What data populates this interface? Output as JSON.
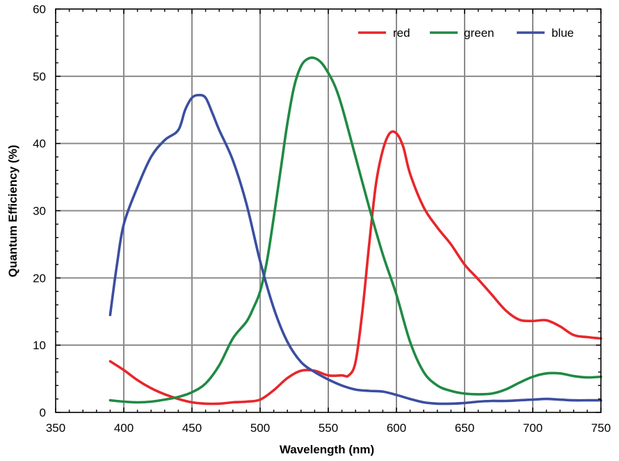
{
  "chart_data": {
    "type": "line",
    "xlabel": "Wavelength (nm)",
    "ylabel": "Quantum Efficiency (%)",
    "xlim": [
      350,
      750
    ],
    "ylim": [
      0,
      60
    ],
    "xticks": [
      350,
      400,
      450,
      500,
      550,
      600,
      650,
      700,
      750
    ],
    "yticks": [
      0,
      10,
      20,
      30,
      40,
      50,
      60
    ],
    "grid": true,
    "legend_position": "top-right",
    "series": [
      {
        "name": "red",
        "color": "#e8262b",
        "points": [
          [
            390,
            7.6
          ],
          [
            400,
            6.3
          ],
          [
            410,
            4.8
          ],
          [
            420,
            3.6
          ],
          [
            430,
            2.7
          ],
          [
            440,
            2.0
          ],
          [
            450,
            1.5
          ],
          [
            460,
            1.3
          ],
          [
            470,
            1.3
          ],
          [
            480,
            1.5
          ],
          [
            490,
            1.6
          ],
          [
            500,
            1.9
          ],
          [
            510,
            3.3
          ],
          [
            520,
            5.1
          ],
          [
            530,
            6.2
          ],
          [
            540,
            6.2
          ],
          [
            550,
            5.5
          ],
          [
            560,
            5.5
          ],
          [
            565,
            5.5
          ],
          [
            570,
            7.5
          ],
          [
            575,
            15.0
          ],
          [
            580,
            25.0
          ],
          [
            585,
            34.0
          ],
          [
            590,
            39.0
          ],
          [
            595,
            41.5
          ],
          [
            600,
            41.5
          ],
          [
            605,
            39.5
          ],
          [
            610,
            35.5
          ],
          [
            620,
            30.5
          ],
          [
            630,
            27.5
          ],
          [
            640,
            25.0
          ],
          [
            650,
            22.0
          ],
          [
            660,
            19.8
          ],
          [
            670,
            17.5
          ],
          [
            680,
            15.2
          ],
          [
            690,
            13.8
          ],
          [
            700,
            13.6
          ],
          [
            710,
            13.7
          ],
          [
            720,
            12.8
          ],
          [
            730,
            11.5
          ],
          [
            740,
            11.2
          ],
          [
            750,
            11.0
          ]
        ]
      },
      {
        "name": "green",
        "color": "#1f8a44",
        "points": [
          [
            390,
            1.8
          ],
          [
            400,
            1.6
          ],
          [
            410,
            1.5
          ],
          [
            420,
            1.6
          ],
          [
            430,
            1.9
          ],
          [
            440,
            2.3
          ],
          [
            450,
            3.0
          ],
          [
            460,
            4.3
          ],
          [
            470,
            7.0
          ],
          [
            480,
            11.0
          ],
          [
            490,
            13.5
          ],
          [
            495,
            15.5
          ],
          [
            500,
            18.0
          ],
          [
            505,
            22.5
          ],
          [
            510,
            29.0
          ],
          [
            515,
            36.0
          ],
          [
            520,
            43.0
          ],
          [
            525,
            48.5
          ],
          [
            530,
            51.5
          ],
          [
            535,
            52.6
          ],
          [
            540,
            52.7
          ],
          [
            545,
            52.0
          ],
          [
            550,
            50.5
          ],
          [
            555,
            48.5
          ],
          [
            560,
            45.5
          ],
          [
            570,
            38.0
          ],
          [
            580,
            30.5
          ],
          [
            590,
            23.5
          ],
          [
            600,
            17.5
          ],
          [
            610,
            10.5
          ],
          [
            620,
            6.0
          ],
          [
            630,
            4.0
          ],
          [
            640,
            3.2
          ],
          [
            650,
            2.8
          ],
          [
            660,
            2.7
          ],
          [
            670,
            2.8
          ],
          [
            680,
            3.4
          ],
          [
            690,
            4.4
          ],
          [
            700,
            5.3
          ],
          [
            710,
            5.8
          ],
          [
            720,
            5.8
          ],
          [
            730,
            5.4
          ],
          [
            740,
            5.2
          ],
          [
            750,
            5.3
          ]
        ]
      },
      {
        "name": "blue",
        "color": "#3b4ea0",
        "points": [
          [
            390,
            14.5
          ],
          [
            395,
            22.0
          ],
          [
            400,
            28.0
          ],
          [
            410,
            33.5
          ],
          [
            420,
            38.0
          ],
          [
            430,
            40.5
          ],
          [
            440,
            42.0
          ],
          [
            445,
            45.0
          ],
          [
            450,
            46.8
          ],
          [
            455,
            47.2
          ],
          [
            460,
            46.8
          ],
          [
            465,
            44.5
          ],
          [
            470,
            42.0
          ],
          [
            480,
            37.5
          ],
          [
            490,
            31.0
          ],
          [
            500,
            22.5
          ],
          [
            510,
            15.5
          ],
          [
            520,
            10.5
          ],
          [
            530,
            7.5
          ],
          [
            540,
            6.0
          ],
          [
            550,
            4.9
          ],
          [
            560,
            4.0
          ],
          [
            570,
            3.4
          ],
          [
            580,
            3.2
          ],
          [
            590,
            3.1
          ],
          [
            600,
            2.6
          ],
          [
            610,
            2.0
          ],
          [
            620,
            1.5
          ],
          [
            630,
            1.3
          ],
          [
            640,
            1.3
          ],
          [
            650,
            1.4
          ],
          [
            660,
            1.6
          ],
          [
            670,
            1.7
          ],
          [
            680,
            1.7
          ],
          [
            690,
            1.8
          ],
          [
            700,
            1.9
          ],
          [
            710,
            2.0
          ],
          [
            720,
            1.9
          ],
          [
            730,
            1.8
          ],
          [
            740,
            1.8
          ],
          [
            750,
            1.8
          ]
        ]
      }
    ]
  },
  "legend": {
    "red": "red",
    "green": "green",
    "blue": "blue"
  },
  "colors": {
    "grid": "#8a8a8a",
    "frame": "#000000"
  }
}
